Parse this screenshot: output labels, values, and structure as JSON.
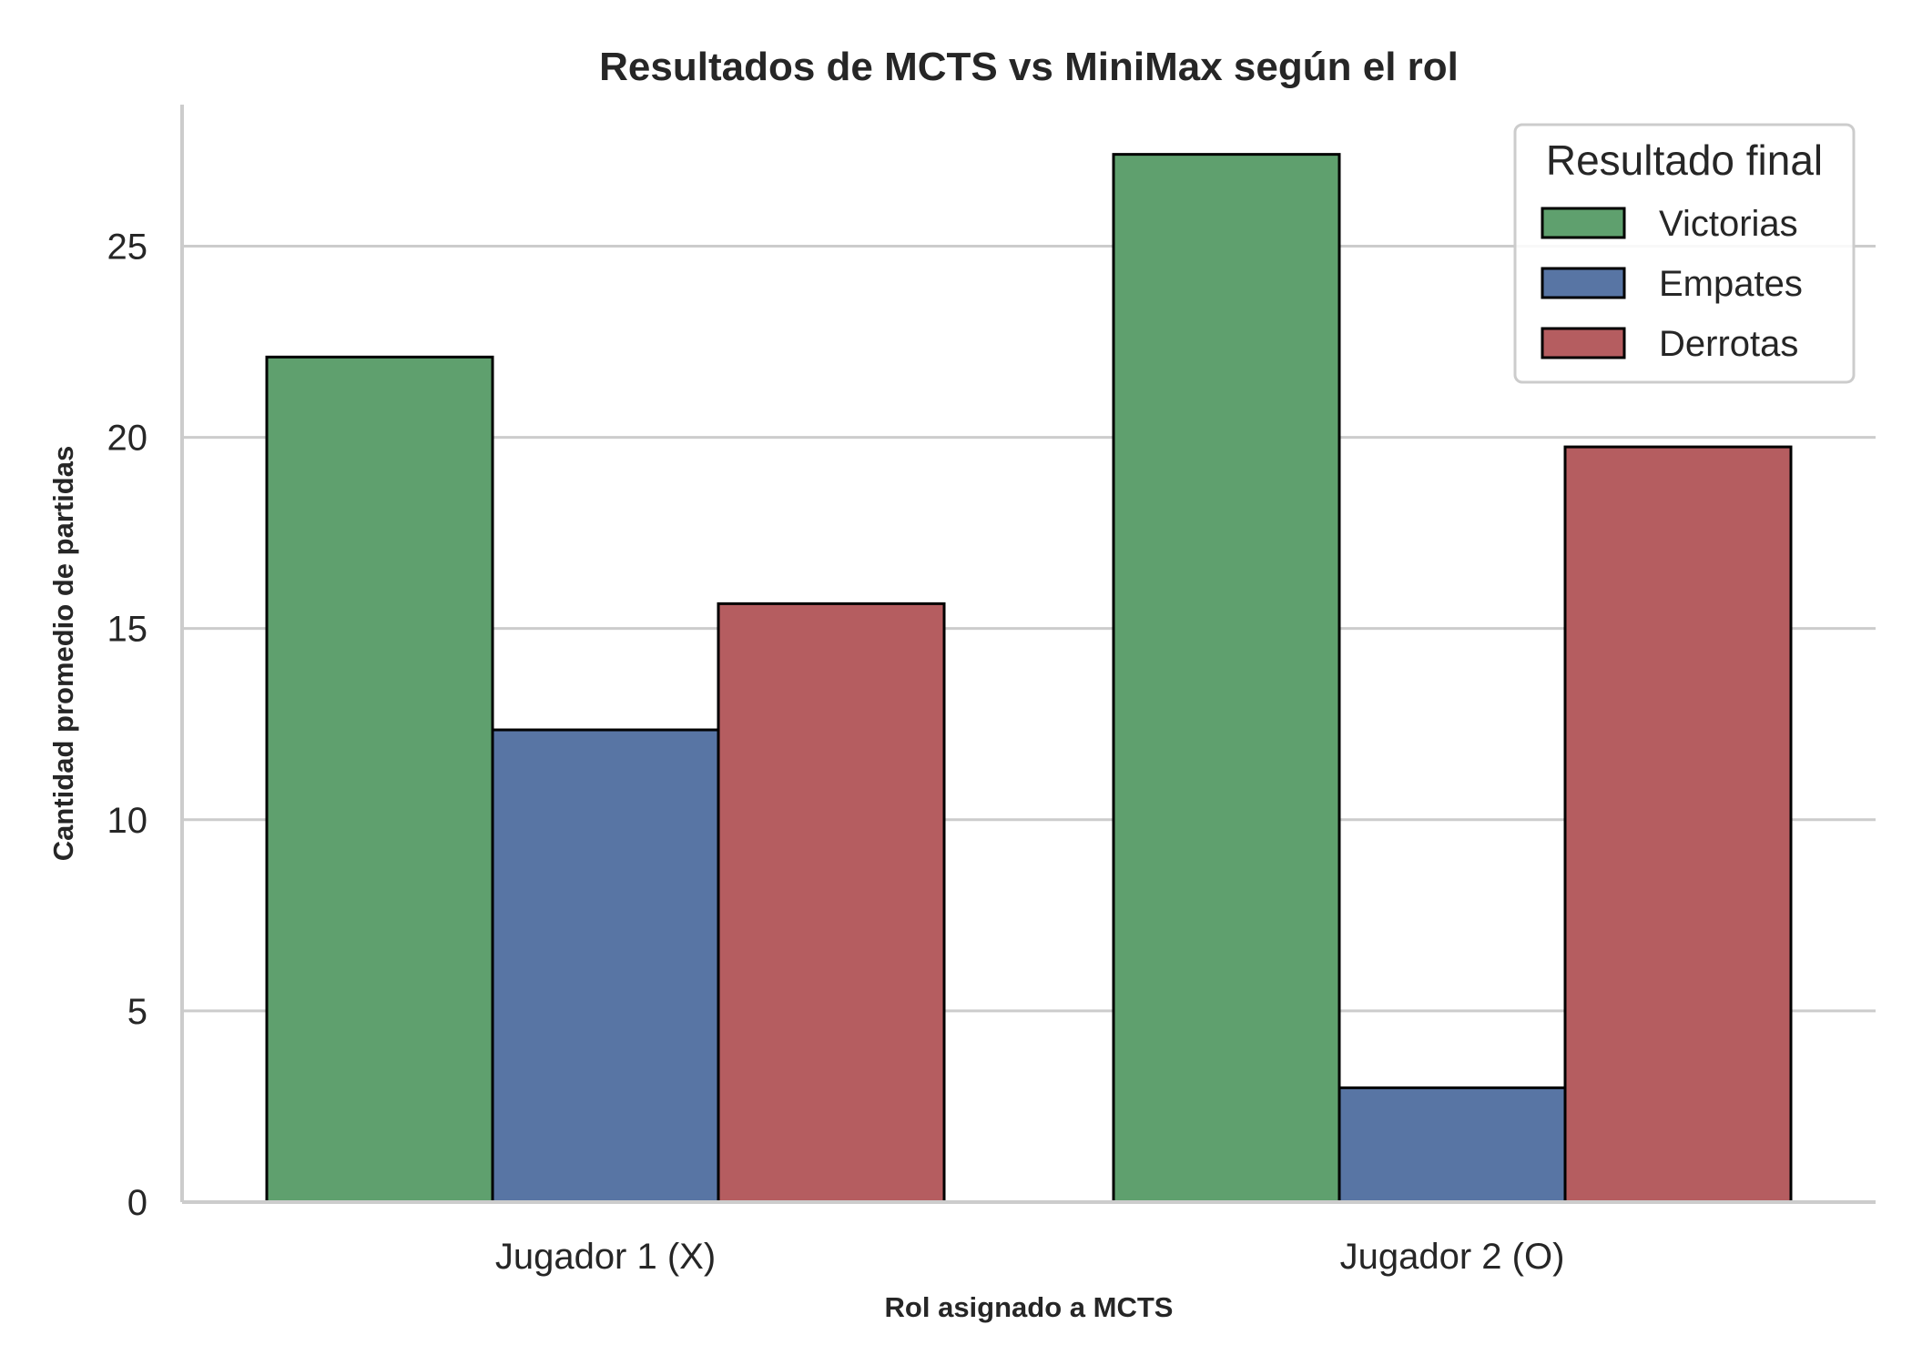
{
  "chart_data": {
    "type": "bar",
    "title": "Resultados de MCTS vs MiniMax según el rol",
    "xlabel": "Rol asignado a MCTS",
    "ylabel": "Cantidad promedio de partidas",
    "categories": [
      "Jugador 1 (X)",
      "Jugador 2 (O)"
    ],
    "series": [
      {
        "name": "Victorias",
        "values": [
          22.1,
          27.4
        ],
        "color": "#5fa06e"
      },
      {
        "name": "Empates",
        "values": [
          12.35,
          2.99
        ],
        "color": "#5875a4"
      },
      {
        "name": "Derrotas",
        "values": [
          15.65,
          19.75
        ],
        "color": "#b55d60"
      }
    ],
    "ylim": [
      0,
      28.7
    ],
    "yticks": [
      "0",
      "5",
      "10",
      "15",
      "20",
      "25"
    ],
    "grid": "y",
    "legend": {
      "title": "Resultado final",
      "placement": "upper right"
    },
    "bar_edge_color": "#000000"
  }
}
